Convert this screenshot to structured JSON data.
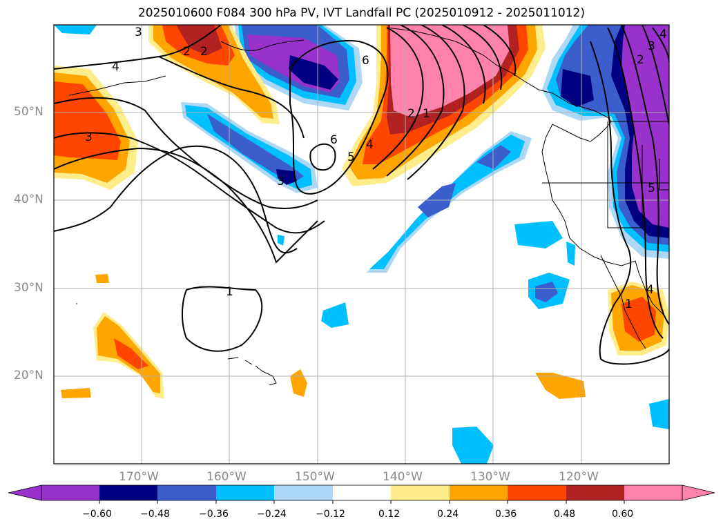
{
  "title": "2025010600 F084 300 hPa PV, IVT Landfall PC (2025010912 - 2025011012)",
  "colors": {
    "neg_over": "#9932cc",
    "neg_060": "#000080",
    "neg_048": "#3a5fcd",
    "neg_036": "#00bfff",
    "neg_024": "#add8f5",
    "zero": "#ffffff",
    "pos_012": "#ffec8b",
    "pos_024": "#ffa500",
    "pos_036": "#ff4500",
    "pos_048": "#b22222",
    "pos_over": "#ff82ab",
    "contour": "#000000",
    "grid": "#b0b0b0",
    "land": "#ffffff"
  },
  "map": {
    "projection": "PlateCarree",
    "lon_range": [
      -180,
      -110
    ],
    "lat_range": [
      10,
      60
    ],
    "lon_ticks": [
      "170°W",
      "160°W",
      "150°W",
      "140°W",
      "130°W",
      "120°W"
    ],
    "lat_ticks": [
      "50°N",
      "40°N",
      "30°N",
      "20°N"
    ],
    "contour_labels": [
      "4",
      "3",
      "2",
      "6",
      "6",
      "5",
      "4",
      "2",
      "1",
      "3",
      "1",
      "1",
      "2",
      "3",
      "4",
      "2",
      "3",
      "4",
      "5"
    ]
  },
  "colorbar": {
    "ticks": [
      "−0.60",
      "−0.48",
      "−0.36",
      "−0.24",
      "−0.12",
      "0.12",
      "0.24",
      "0.36",
      "0.48",
      "0.60"
    ],
    "extend": "both"
  }
}
